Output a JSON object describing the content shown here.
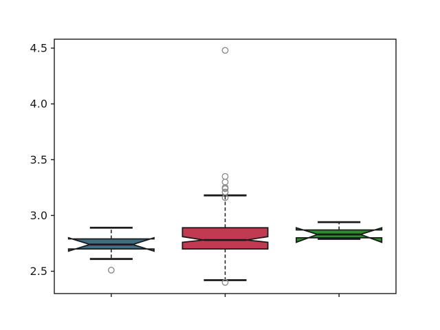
{
  "figure": {
    "background": "#ffffff"
  },
  "chart_data": {
    "type": "box",
    "notched": true,
    "orientation": "vertical",
    "title": "",
    "xlabel": "",
    "ylabel": "",
    "grid": false,
    "legend": null,
    "xlim": [
      0.5,
      3.5
    ],
    "ylim": [
      2.3,
      4.58
    ],
    "box_width": 0.75,
    "edge_color": "#1a1a1a",
    "tick_label_color": "#1a1a1a",
    "flier_edge_color": "#8c8c8c",
    "yticks": [
      {
        "value": 2.5,
        "label": "2.5"
      },
      {
        "value": 3.0,
        "label": "3.0"
      },
      {
        "value": 3.5,
        "label": "3.5"
      },
      {
        "value": 4.0,
        "label": "4.0"
      },
      {
        "value": 4.5,
        "label": "4.5"
      }
    ],
    "xticks": [
      {
        "value": 1,
        "label": ""
      },
      {
        "value": 2,
        "label": ""
      },
      {
        "value": 3,
        "label": ""
      }
    ],
    "series": [
      {
        "name": "blue",
        "position": 1,
        "color": "#3E6E82",
        "whislo": 2.61,
        "q1": 2.7,
        "med": 2.74,
        "q3": 2.79,
        "whishi": 2.89,
        "cilo": 2.68,
        "cihi": 2.8,
        "fliers": [
          2.51
        ]
      },
      {
        "name": "red",
        "position": 2,
        "color": "#C23A52",
        "whislo": 2.42,
        "q1": 2.7,
        "med": 2.78,
        "q3": 2.89,
        "whishi": 3.18,
        "cilo": 2.76,
        "cihi": 2.81,
        "fliers": [
          4.48,
          3.35,
          3.3,
          3.25,
          3.24,
          3.21,
          3.16,
          2.4
        ]
      },
      {
        "name": "green",
        "position": 3,
        "color": "#2E8B2E",
        "whislo": 2.79,
        "q1": 2.8,
        "med": 2.83,
        "q3": 2.87,
        "whishi": 2.94,
        "cilo": 2.76,
        "cihi": 2.89,
        "fliers": []
      }
    ]
  }
}
